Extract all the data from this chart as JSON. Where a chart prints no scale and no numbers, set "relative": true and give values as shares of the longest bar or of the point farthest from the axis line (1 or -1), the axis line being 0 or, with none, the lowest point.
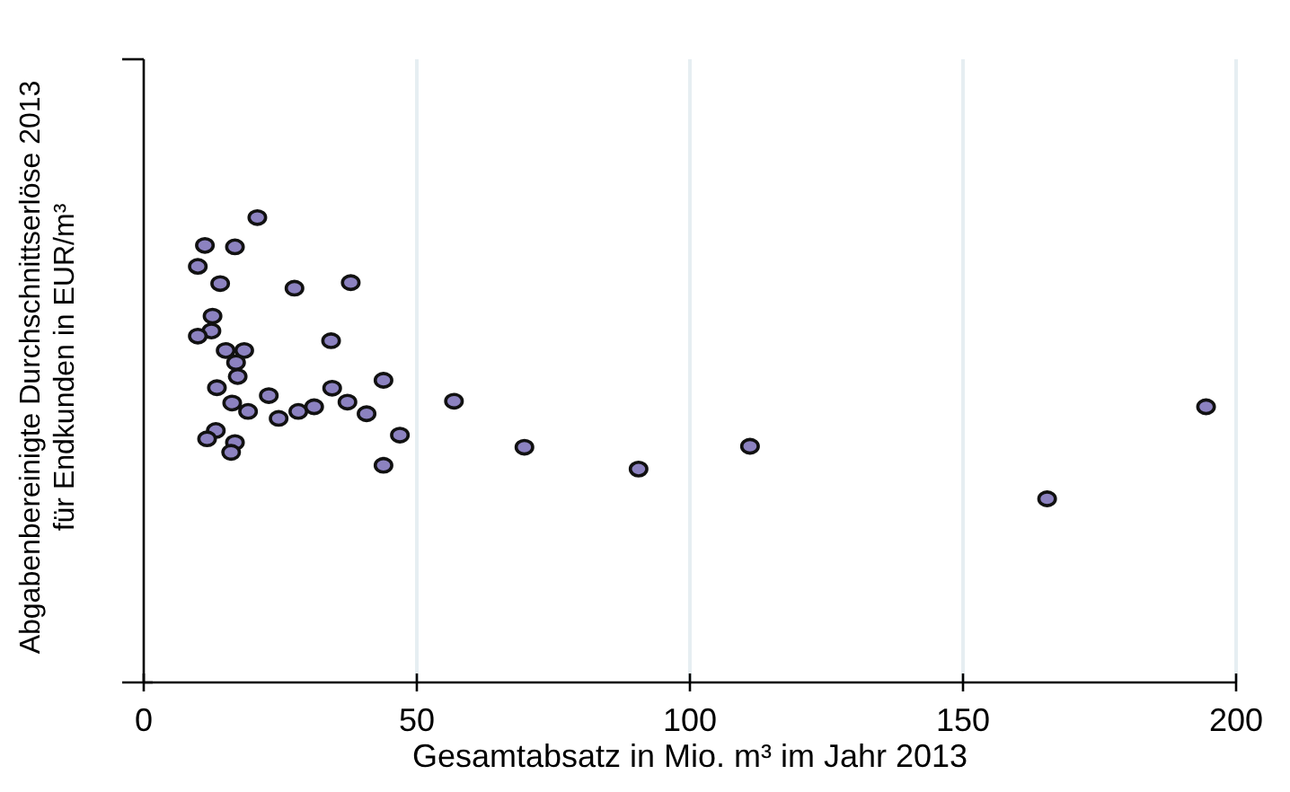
{
  "chart_data": {
    "type": "scatter",
    "xlabel": "Gesamtabsatz in Mio. m³ im Jahr 2013",
    "ylabel": "Abgabenbereinigte Durchschnittserlöse 2013\nfür Endkunden in EUR/m³",
    "relative": true,
    "xlim": [
      0,
      200
    ],
    "xticks": [
      0,
      50,
      100,
      150,
      200
    ],
    "grid": "x",
    "tick_labels": "x",
    "marker": "circle",
    "series": [
      {
        "color": "#8c82c0",
        "x": [
          20.8,
          11.2,
          16.7,
          9.9,
          14.0,
          27.6,
          37.9,
          12.6,
          12.4,
          9.9,
          34.3,
          15.0,
          18.4,
          16.9,
          17.2,
          13.4,
          22.9,
          34.5,
          43.9,
          16.2,
          19.1,
          24.7,
          28.3,
          31.2,
          37.3,
          40.8,
          13.2,
          11.6,
          16.7,
          16.0,
          46.9,
          43.9,
          56.8,
          69.7,
          90.6,
          111.0,
          165.4,
          194.5
        ],
        "values": [
          1.0,
          0.94,
          0.937,
          0.895,
          0.858,
          0.848,
          0.86,
          0.788,
          0.756,
          0.745,
          0.735,
          0.714,
          0.714,
          0.688,
          0.658,
          0.634,
          0.617,
          0.633,
          0.65,
          0.601,
          0.583,
          0.568,
          0.583,
          0.593,
          0.603,
          0.578,
          0.542,
          0.524,
          0.516,
          0.495,
          0.532,
          0.467,
          0.605,
          0.506,
          0.459,
          0.508,
          0.395,
          0.593
        ]
      }
    ]
  }
}
